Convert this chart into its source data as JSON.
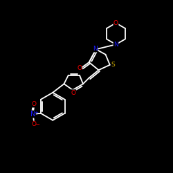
{
  "background_color": "#000000",
  "bond_color": "#ffffff",
  "atom_colors": {
    "O": "#ff0000",
    "N": "#1a1aff",
    "S": "#ccaa00",
    "C": "#ffffff"
  },
  "figsize": [
    2.5,
    2.5
  ],
  "dpi": 100
}
